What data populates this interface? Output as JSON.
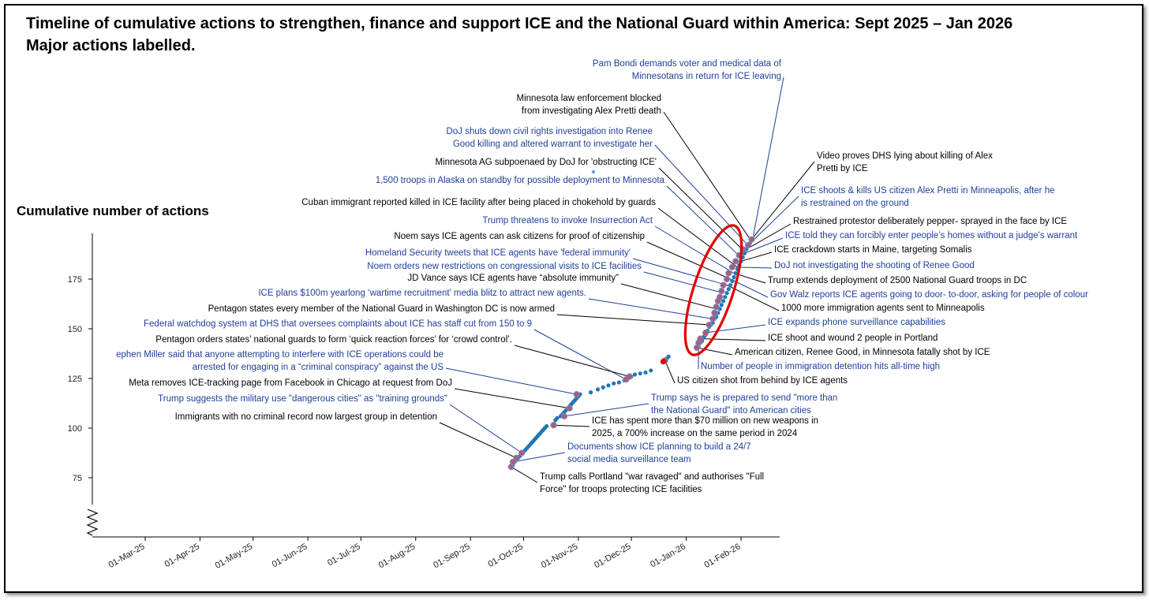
{
  "title_line1": "Timeline of cumulative actions to strengthen, finance and support ICE and the National Guard within America: Sept 2025 – Jan 2026",
  "title_line2": "Major actions labelled.",
  "chart_data": {
    "type": "scatter",
    "ylabel": "Cumulative number of actions",
    "y_ticks": [
      75,
      100,
      125,
      150,
      175
    ],
    "x_ticks": [
      "01-Mar-25",
      "01-Apr-25",
      "01-May-25",
      "01-Jun-25",
      "01-Jul-25",
      "01-Aug-25",
      "01-Sep-25",
      "01-Oct-25",
      "01-Nov-25",
      "01-Dec-25",
      "01-Jan-26",
      "01-Feb-26"
    ],
    "ylim": [
      65,
      202
    ],
    "y_axis_break": true,
    "grid": false,
    "colors": {
      "points": "#1f77b4",
      "labelled_marker": "#b05a78",
      "highlight": "#e00000",
      "annotation_blue": "#1f3f99",
      "annotation_black": "#000000"
    },
    "series": [
      {
        "points": [
          [
            "2025-09-24",
            80.5
          ],
          [
            "2025-09-25",
            81.5
          ],
          [
            "2025-09-26",
            83
          ],
          [
            "2025-09-27",
            84
          ],
          [
            "2025-09-28",
            85
          ],
          [
            "2025-09-29",
            86
          ],
          [
            "2025-09-30",
            87
          ],
          [
            "2025-10-01",
            88
          ],
          [
            "2025-10-02",
            89
          ],
          [
            "2025-10-03",
            90
          ],
          [
            "2025-10-04",
            91
          ],
          [
            "2025-10-05",
            92
          ],
          [
            "2025-10-06",
            93
          ],
          [
            "2025-10-07",
            94
          ],
          [
            "2025-10-08",
            95
          ],
          [
            "2025-10-09",
            96
          ],
          [
            "2025-10-10",
            97
          ],
          [
            "2025-10-11",
            98
          ],
          [
            "2025-10-12",
            99
          ],
          [
            "2025-10-13",
            100
          ],
          [
            "2025-10-14",
            101
          ],
          [
            "2025-10-18",
            102
          ],
          [
            "2025-10-19",
            104
          ],
          [
            "2025-10-20",
            105
          ],
          [
            "2025-10-22",
            106
          ],
          [
            "2025-10-23",
            107
          ],
          [
            "2025-10-24",
            108
          ],
          [
            "2025-10-25",
            109
          ],
          [
            "2025-10-26",
            110
          ],
          [
            "2025-10-27",
            111
          ],
          [
            "2025-10-28",
            112
          ],
          [
            "2025-10-29",
            113
          ],
          [
            "2025-10-30",
            114
          ],
          [
            "2025-10-31",
            115
          ],
          [
            "2025-11-01",
            116
          ],
          [
            "2025-11-02",
            117
          ],
          [
            "2025-11-08",
            118
          ],
          [
            "2025-11-12",
            119.5
          ],
          [
            "2025-11-15",
            120.5
          ],
          [
            "2025-11-18",
            121.5
          ],
          [
            "2025-11-21",
            122.5
          ],
          [
            "2025-11-24",
            123
          ],
          [
            "2025-11-27",
            124
          ],
          [
            "2025-11-29",
            125
          ],
          [
            "2025-12-01",
            126
          ],
          [
            "2025-12-03",
            127
          ],
          [
            "2025-12-06",
            127.5
          ],
          [
            "2025-12-09",
            128
          ],
          [
            "2025-12-12",
            129
          ],
          [
            "2025-12-20",
            134
          ],
          [
            "2025-12-21",
            135
          ],
          [
            "2025-12-22",
            136
          ],
          [
            "2026-01-07",
            140
          ],
          [
            "2026-01-08",
            141
          ],
          [
            "2026-01-09",
            143
          ],
          [
            "2026-01-10",
            144
          ],
          [
            "2026-01-11",
            146
          ],
          [
            "2026-01-12",
            147
          ],
          [
            "2026-01-13",
            149
          ],
          [
            "2026-01-14",
            151
          ],
          [
            "2026-01-15",
            152
          ],
          [
            "2026-01-16",
            153
          ],
          [
            "2026-01-17",
            155
          ],
          [
            "2026-01-18",
            156
          ],
          [
            "2026-01-19",
            158
          ],
          [
            "2026-01-20",
            160
          ],
          [
            "2026-01-21",
            162
          ],
          [
            "2026-01-22",
            164
          ],
          [
            "2026-01-23",
            166
          ],
          [
            "2026-01-24",
            168
          ],
          [
            "2026-01-25",
            170
          ],
          [
            "2026-01-26",
            172
          ],
          [
            "2026-01-27",
            174
          ],
          [
            "2026-01-28",
            176
          ],
          [
            "2026-01-29",
            178
          ],
          [
            "2026-01-30",
            180
          ],
          [
            "2026-01-31",
            182
          ],
          [
            "2026-02-01",
            184
          ],
          [
            "2026-02-02",
            186
          ],
          [
            "2026-02-03",
            188
          ],
          [
            "2026-02-04",
            190
          ],
          [
            "2026-02-05",
            192
          ],
          [
            "2026-02-06",
            193
          ],
          [
            "2026-02-07",
            195
          ]
        ],
        "marked_points": [
          [
            "2025-09-24",
            80.5
          ],
          [
            "2025-09-25",
            83
          ],
          [
            "2025-09-27",
            85
          ],
          [
            "2025-09-30",
            87.5
          ],
          [
            "2025-10-18",
            101.5
          ],
          [
            "2025-10-24",
            106
          ],
          [
            "2025-10-27",
            110
          ],
          [
            "2025-10-31",
            117
          ],
          [
            "2025-11-28",
            124.5
          ],
          [
            "2025-11-30",
            126
          ],
          [
            "2025-12-20",
            134
          ],
          [
            "2026-01-07",
            140.5
          ],
          [
            "2026-01-08",
            143
          ],
          [
            "2026-01-09",
            145
          ],
          [
            "2026-01-12",
            148
          ],
          [
            "2026-01-14",
            152
          ],
          [
            "2026-01-16",
            155
          ],
          [
            "2026-01-17",
            158
          ],
          [
            "2026-01-18",
            161
          ],
          [
            "2026-01-19",
            164
          ],
          [
            "2026-01-20",
            166
          ],
          [
            "2026-01-21",
            169
          ],
          [
            "2026-01-22",
            172
          ],
          [
            "2026-01-24",
            175
          ],
          [
            "2026-01-25",
            178
          ],
          [
            "2026-01-27",
            181
          ],
          [
            "2026-01-29",
            184
          ],
          [
            "2026-01-31",
            187
          ],
          [
            "2026-02-02",
            190
          ],
          [
            "2026-02-05",
            192
          ],
          [
            "2026-02-07",
            195
          ]
        ],
        "red_point": [
          "2025-12-19",
          133.5
        ]
      }
    ],
    "annotations": [
      {
        "text": [
          "Pam Bondi demands voter and medical data of",
          "Minnesotans in return for ICE leaving"
        ],
        "color": "blue",
        "x": "2026-02-08",
        "y": 197
      },
      {
        "text": [
          "Minnesota law enforcement blocked",
          "from investigating Alex Pretti death"
        ],
        "color": "black",
        "x": "2026-02-07",
        "y": 194
      },
      {
        "text": [
          "DoJ shuts down civil rights investigation into Renee",
          "Good killing and altered warrant to investigate her"
        ],
        "color": "blue",
        "x": "2026-02-06",
        "y": 191
      },
      {
        "text": [
          "Video proves DHS lying about killing of Alex",
          "Pretti by ICE"
        ],
        "color": "black",
        "x": "2026-02-07",
        "y": 195
      },
      {
        "text": [
          "Minnesota AG subpoenaed by DoJ for 'obstructing ICE'"
        ],
        "color": "black",
        "x": "2026-02-04",
        "y": 188
      },
      {
        "text": [
          "1,500 troops in Alaska on standby for possible deployment to Minnesota"
        ],
        "color": "blue",
        "x": "2026-02-02",
        "y": 185
      },
      {
        "text": [
          "ICE shoots & kills US citizen Alex Pretti in Minneapolis, after he",
          "is restrained on the ground"
        ],
        "color": "blue",
        "x": "2026-02-05",
        "y": 192
      },
      {
        "text": [
          "Cuban immigrant reported killed in ICE facility after being placed in chokehold by guards"
        ],
        "color": "black",
        "x": "2026-01-30",
        "y": 181
      },
      {
        "text": [
          "Restrained protestor  deliberately pepper- sprayed in the face by ICE"
        ],
        "color": "black",
        "x": "2026-02-04",
        "y": 190
      },
      {
        "text": [
          "Trump threatens to invoke Insurrection Act"
        ],
        "color": "blue",
        "x": "2026-01-28",
        "y": 178
      },
      {
        "text": [
          "ICE told they can forcibly enter people’s homes without a judge's warrant"
        ],
        "color": "blue",
        "x": "2026-02-03",
        "y": 188
      },
      {
        "text": [
          "Noem says ICE agents can ask citizens for proof of citizenship"
        ],
        "color": "black",
        "x": "2026-01-26",
        "y": 175
      },
      {
        "text": [
          "ICE crackdown starts in Maine, targeting Somalis"
        ],
        "color": "black",
        "x": "2026-02-01",
        "y": 184
      },
      {
        "text": [
          "Homeland Security tweets that ICE agents have 'federal immunity'"
        ],
        "color": "blue",
        "x": "2026-01-24",
        "y": 172
      },
      {
        "text": [
          "DoJ not investigating the shooting of Renee Good"
        ],
        "color": "blue",
        "x": "2026-01-30",
        "y": 181
      },
      {
        "text": [
          "Noem orders new restrictions on congressional visits to ICE facilities"
        ],
        "color": "blue",
        "x": "2026-01-22",
        "y": 168
      },
      {
        "text": [
          "JD Vance says ICE agents have “absolute immunity”"
        ],
        "color": "black",
        "x": "2026-01-18",
        "y": 160
      },
      {
        "text": [
          "Trump extends deployment of 2500 National Guard troops in DC"
        ],
        "color": "black",
        "x": "2026-01-28",
        "y": 178
      },
      {
        "text": [
          "ICE plans $100m yearlong ‘wartime recruitment’ media blitz to attract new agents."
        ],
        "color": "blue",
        "x": "2026-01-16",
        "y": 155
      },
      {
        "text": [
          "Gov Walz reports ICE agents going to door- to-door, asking for people of colour"
        ],
        "color": "blue",
        "x": "2026-01-26",
        "y": 175
      },
      {
        "text": [
          "Pentagon states every member of the National Guard in Washington DC is now armed"
        ],
        "color": "black",
        "x": "2026-01-14",
        "y": 152
      },
      {
        "text": [
          "1000 more immigration agents sent to Minneapolis"
        ],
        "color": "black",
        "x": "2026-01-24",
        "y": 172
      },
      {
        "text": [
          "Federal watchdog system at DHS that oversees complaints about ICE has staff cut from 150 to 9"
        ],
        "color": "blue",
        "x": "2025-11-28",
        "y": 124.5
      },
      {
        "text": [
          "ICE expands phone surveillance capabilities"
        ],
        "color": "blue",
        "x": "2026-01-12",
        "y": 148
      },
      {
        "text": [
          "Pentagon orders states’ national guards to form ‘quick reaction forces’ for ‘crowd control’."
        ],
        "color": "black",
        "x": "2025-11-30",
        "y": 126
      },
      {
        "text": [
          "ICE shoot and wound 2 people in Portland"
        ],
        "color": "black",
        "x": "2026-01-09",
        "y": 145
      },
      {
        "text": [
          "ephen Miller said that anyone attempting to interfere with ICE operations could be",
          "arrested for engaging in a “criminal conspiracy” against the US"
        ],
        "color": "blue",
        "x": "2025-10-31",
        "y": 117
      },
      {
        "text": [
          "American citizen, Renee Good, in Minnesota fatally shot by ICE"
        ],
        "color": "black",
        "x": "2026-01-07",
        "y": 140.5
      },
      {
        "text": [
          "Number of people in immigration detention hits all-time high"
        ],
        "color": "blue",
        "x": "2026-01-08",
        "y": 143
      },
      {
        "text": [
          "US citizen shot from behind by ICE agents"
        ],
        "color": "black",
        "x": "2025-12-20",
        "y": 134
      },
      {
        "text": [
          "Meta removes ICE-tracking page from Facebook in Chicago at request from DoJ"
        ],
        "color": "black",
        "x": "2025-10-27",
        "y": 110
      },
      {
        "text": [
          "Trump suggests  the military use \"dangerous cities\" as \"training grounds\""
        ],
        "color": "blue",
        "x": "2025-09-30",
        "y": 87.5
      },
      {
        "text": [
          "Trump says he is prepared to send \"more than",
          "the National Guard\" into American cities"
        ],
        "color": "blue",
        "x": "2025-10-24",
        "y": 106
      },
      {
        "text": [
          "Immigrants with no criminal record now largest group in detention"
        ],
        "color": "black",
        "x": "2025-09-27",
        "y": 85
      },
      {
        "text": [
          "ICE has spent more than $70 million on new weapons in",
          "2025, a 700% increase on the same period in 2024"
        ],
        "color": "black",
        "x": "2025-10-18",
        "y": 101.5
      },
      {
        "text": [
          "Documents show ICE planning to build a 24/7",
          "social media surveillance team"
        ],
        "color": "blue",
        "x": "2025-09-25",
        "y": 83
      },
      {
        "text": [
          "Trump calls Portland \"war ravaged\" and authorises \"Full",
          "Force\" for troops protecting ICE facilities"
        ],
        "color": "black",
        "x": "2025-09-24",
        "y": 80.5
      }
    ]
  }
}
